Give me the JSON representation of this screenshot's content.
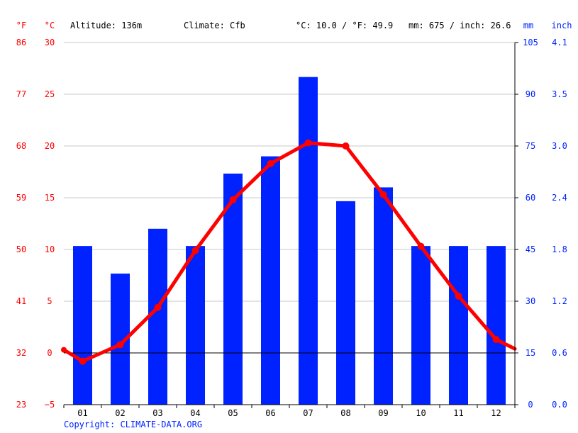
{
  "colors": {
    "temperature": "#ff0000",
    "precipitation": "#0022ff",
    "grid": "#c8c8c8",
    "axis": "#000000",
    "text": "#000000"
  },
  "header": {
    "f_unit": "°F",
    "c_unit": "°C",
    "altitude": "Altitude: 136m",
    "climate": "Climate: Cfb",
    "temp_summary": "°C: 10.0 / °F: 49.9",
    "precip_summary": "mm: 675 / inch: 26.6",
    "mm_unit": "mm",
    "inch_unit": "inch"
  },
  "footer": {
    "copyright": "Copyright: CLIMATE-DATA.ORG"
  },
  "chart_data": {
    "type": "bar+line",
    "categories": [
      "01",
      "02",
      "03",
      "04",
      "05",
      "06",
      "07",
      "08",
      "09",
      "10",
      "11",
      "12"
    ],
    "series": [
      {
        "name": "Precipitation (mm)",
        "type": "bar",
        "axis": "right",
        "values": [
          46,
          38,
          51,
          46,
          67,
          72,
          95,
          59,
          63,
          46,
          46,
          46
        ]
      },
      {
        "name": "Temperature (°C)",
        "type": "line",
        "axis": "left",
        "values": [
          -0.8,
          0.8,
          4.4,
          9.9,
          14.8,
          18.3,
          20.3,
          20.0,
          15.3,
          10.3,
          5.5,
          1.3
        ]
      }
    ],
    "temp_edge_values": {
      "start": 0.3,
      "end": 0.4
    },
    "left_axis": {
      "unit": "°C",
      "ylim": [
        -5,
        30
      ],
      "ticks": [
        "30",
        "25",
        "20",
        "15",
        "10",
        "5",
        "0",
        "−5"
      ]
    },
    "left_axis_f": {
      "unit": "°F",
      "ticks": [
        "86",
        "77",
        "68",
        "59",
        "50",
        "41",
        "32",
        "23"
      ]
    },
    "right_axis": {
      "unit": "mm",
      "ylim": [
        0,
        105
      ],
      "ticks": [
        "105",
        "90",
        "75",
        "60",
        "45",
        "30",
        "15",
        "0"
      ]
    },
    "right_axis_inch": {
      "unit": "inch",
      "ticks": [
        "4.1",
        "3.5",
        "3.0",
        "2.4",
        "1.8",
        "1.2",
        "0.6",
        "0.0"
      ]
    },
    "zero_line_value": 0,
    "grid": true
  }
}
